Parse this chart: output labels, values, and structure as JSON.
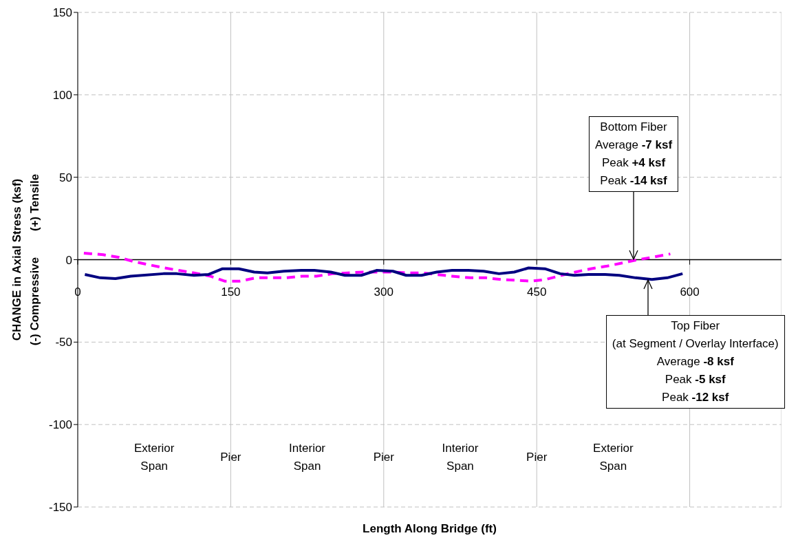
{
  "chart_data": {
    "type": "line",
    "xlabel": "Length Along Bridge (ft)",
    "ylabel": "CHANGE in Axial Stress (ksf)\n(-) Compressive        (+) Tensile",
    "xlim": [
      0,
      690
    ],
    "xticks": [
      0,
      150,
      300,
      450,
      600
    ],
    "ylim": [
      -150,
      150
    ],
    "yticks": [
      -150,
      -100,
      -50,
      0,
      50,
      100,
      150
    ],
    "grid": true,
    "legend": false,
    "marker": "none",
    "series": [
      {
        "color": "#ff00ff",
        "line_style": "dashed",
        "x": [
          6,
          25,
          40,
          54,
          69,
          85,
          99,
          114,
          130,
          144,
          159,
          175,
          189,
          204,
          220,
          234,
          250,
          265,
          280,
          295,
          309,
          324,
          338,
          352,
          367,
          385,
          400,
          415,
          430,
          445,
          459,
          474,
          488,
          503,
          518,
          534,
          549,
          564,
          581
        ],
        "values": [
          4,
          3,
          1.5,
          -1,
          -3,
          -5,
          -6.5,
          -8,
          -10,
          -13,
          -13,
          -11,
          -11,
          -11,
          -10,
          -10,
          -8.5,
          -8,
          -7.5,
          -7.5,
          -7.5,
          -8,
          -8,
          -9,
          -10,
          -11,
          -11,
          -12,
          -12.5,
          -13,
          -12,
          -9.5,
          -7.5,
          -5.5,
          -4,
          -2,
          0,
          1.5,
          3.5
        ]
      },
      {
        "color": "#000080",
        "line_style": "solid",
        "x": [
          7,
          22,
          37,
          52,
          84,
          97,
          114,
          128,
          142,
          158,
          173,
          186,
          202,
          219,
          232,
          248,
          262,
          278,
          293,
          309,
          322,
          337,
          352,
          367,
          383,
          398,
          413,
          428,
          442,
          458,
          473,
          487,
          501,
          517,
          531,
          547,
          563,
          578,
          593
        ],
        "values": [
          -9,
          -11,
          -11.5,
          -10,
          -8.5,
          -8.5,
          -9.5,
          -9,
          -5.5,
          -5.5,
          -7.5,
          -8,
          -7,
          -6.5,
          -6.5,
          -7.5,
          -9.5,
          -9.5,
          -6.5,
          -7,
          -9.5,
          -9.5,
          -7.5,
          -6.5,
          -6.5,
          -7,
          -8.5,
          -7.5,
          -5,
          -5.5,
          -8.5,
          -9.5,
          -9,
          -9,
          -9.5,
          -11,
          -12,
          -11,
          -8.5
        ]
      }
    ],
    "annotations": [
      {
        "text": "Bottom Fiber\nAverage -7 ksf\nPeak +4 ksf\nPeak -14 ksf",
        "x": 545,
        "y": 0
      },
      {
        "text": "Top Fiber\n(at Segment / Overlay Interface)\nAverage -8 ksf\nPeak -5 ksf\nPeak -12 ksf",
        "x": 559,
        "y": -12
      },
      "Exterior\nSpan",
      "Pier",
      "Interior\nSpan",
      "Pier",
      "Interior\nSpan",
      "Pier",
      "Exterior\nSpan"
    ]
  }
}
